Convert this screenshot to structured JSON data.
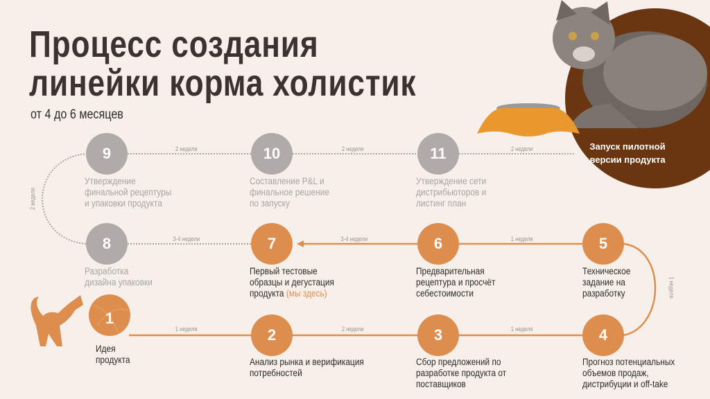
{
  "title": {
    "line1": "Процесс создания",
    "line2": "линейки корма холистик"
  },
  "subtitle": "от 4 до 6 месяцев",
  "launch": {
    "label": "Запуск пилотной версии продукта"
  },
  "colors": {
    "active": "#dd8d4e",
    "inactive": "#b0aba8",
    "launch": "#6a3612",
    "background": "#f7f0ea"
  },
  "steps": [
    {
      "num": "1",
      "label": "Идея продукта",
      "status": "done"
    },
    {
      "num": "2",
      "label": "Анализ рынка и верификация потребностей",
      "status": "done"
    },
    {
      "num": "3",
      "label": "Сбор предложений по разработке продукта от поставщиков",
      "status": "done"
    },
    {
      "num": "4",
      "label": "Прогноз потенциальных объемов продаж, дистрибуции и off-take",
      "status": "done"
    },
    {
      "num": "5",
      "label": "Техническое задание на разработку",
      "status": "done"
    },
    {
      "num": "6",
      "label": "Предварительная рецептура и просчёт себестоимости",
      "status": "done"
    },
    {
      "num": "7",
      "label": "Первый тестовые образцы и дегустация продукта",
      "highlight": "(мы здесь)",
      "status": "current"
    },
    {
      "num": "8",
      "label": "Разработка дизайна упаковки",
      "status": "pending"
    },
    {
      "num": "9",
      "label": "Утверждение финальной рецептуры и упаковки продукта",
      "status": "pending"
    },
    {
      "num": "10",
      "label": "Составление P&L и финальное решение по запуску",
      "status": "pending"
    },
    {
      "num": "11",
      "label": "Утверждение сети дистрибьюторов и листинг план",
      "status": "pending"
    }
  ],
  "durations": {
    "d1_2": "1 неделя",
    "d2_3": "2 недели",
    "d3_4": "1 неделя",
    "d4_5": "1 неделя",
    "d5_6": "1 неделя",
    "d6_7": "3-4 недели",
    "d7_8": "3-4 недели",
    "d8_9": "2 недели",
    "d9_10": "2 недели",
    "d10_11": "2 недели",
    "d11_launch": "2 недели"
  }
}
